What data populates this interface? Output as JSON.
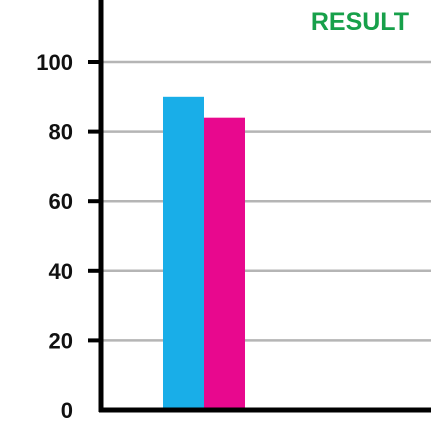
{
  "chart_data": {
    "type": "bar",
    "title": "RESULT",
    "categories": [
      ""
    ],
    "series": [
      {
        "values": [
          90
        ],
        "color": "#19aee8"
      },
      {
        "values": [
          84
        ],
        "color": "#e8088e"
      }
    ],
    "ylim": [
      0,
      100
    ],
    "yticks": [
      0,
      20,
      40,
      60,
      80,
      100
    ],
    "grid": true,
    "title_color": "#17a04a"
  }
}
